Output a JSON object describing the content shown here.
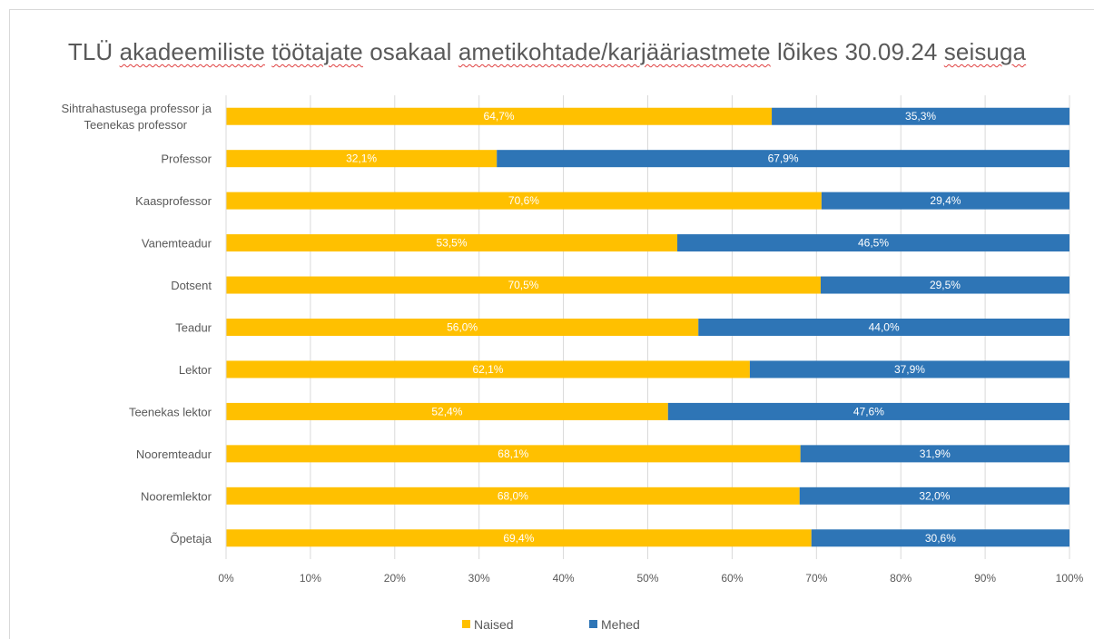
{
  "chart_data": {
    "type": "bar",
    "orientation": "horizontal",
    "stacked": "percent",
    "title": "TLÜ akadeemiliste töötajate osakaal ametikohtade/karjääriastmete lõikes 30.09.24 seisuga",
    "title_words": [
      "TLÜ",
      "akadeemiliste",
      "töötajate",
      "osakaal",
      "ametikohtade/karjääriastmete",
      "lõikes",
      "30.09.24",
      "seisuga"
    ],
    "categories": [
      "Sihtrahastusega professor ja Teenekas professor",
      "Professor",
      "Kaasprofessor",
      "Vanemteadur",
      "Dotsent",
      "Teadur",
      "Lektor",
      "Teenekas lektor",
      "Nooremteadur",
      "Nooremlektor",
      "Õpetaja"
    ],
    "category_lines": [
      [
        "Sihtrahastusega professor ja",
        "Teenekas professor"
      ],
      [
        "Professor"
      ],
      [
        "Kaasprofessor"
      ],
      [
        "Vanemteadur"
      ],
      [
        "Dotsent"
      ],
      [
        "Teadur"
      ],
      [
        "Lektor"
      ],
      [
        "Teenekas lektor"
      ],
      [
        "Nooremteadur"
      ],
      [
        "Nooremlektor"
      ],
      [
        "Õpetaja"
      ]
    ],
    "series": [
      {
        "name": "Naised",
        "color": "#ffc000",
        "values": [
          64.7,
          32.1,
          70.6,
          53.5,
          70.5,
          56.0,
          62.1,
          52.4,
          68.1,
          68.0,
          69.4
        ],
        "labels": [
          "64,7%",
          "32,1%",
          "70,6%",
          "53,5%",
          "70,5%",
          "56,0%",
          "62,1%",
          "52,4%",
          "68,1%",
          "68,0%",
          "69,4%"
        ]
      },
      {
        "name": "Mehed",
        "color": "#2e75b6",
        "values": [
          35.3,
          67.9,
          29.4,
          46.5,
          29.5,
          44.0,
          37.9,
          47.6,
          31.9,
          32.0,
          30.6
        ],
        "labels": [
          "35,3%",
          "67,9%",
          "29,4%",
          "46,5%",
          "29,5%",
          "44,0%",
          "37,9%",
          "47,6%",
          "31,9%",
          "32,0%",
          "30,6%"
        ]
      }
    ],
    "xlim": [
      0,
      100
    ],
    "xticks": [
      0,
      10,
      20,
      30,
      40,
      50,
      60,
      70,
      80,
      90,
      100
    ],
    "xtick_labels": [
      "0%",
      "10%",
      "20%",
      "30%",
      "40%",
      "50%",
      "60%",
      "70%",
      "80%",
      "90%",
      "100%"
    ],
    "grid": "vertical",
    "legend": "bottom"
  }
}
